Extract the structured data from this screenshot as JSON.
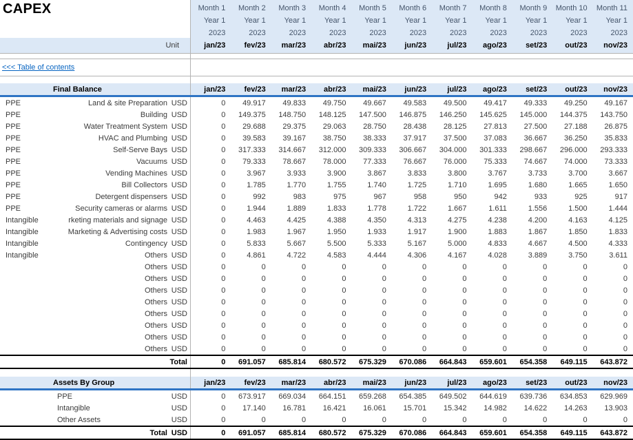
{
  "title": "CAPEX",
  "unit_header": "Unit",
  "toc_link": "<<< Table of contents",
  "columns": [
    {
      "month": "Month 1",
      "year": "Year 1",
      "cal": "2023",
      "date": "jan/23"
    },
    {
      "month": "Month 2",
      "year": "Year 1",
      "cal": "2023",
      "date": "fev/23"
    },
    {
      "month": "Month 3",
      "year": "Year 1",
      "cal": "2023",
      "date": "mar/23"
    },
    {
      "month": "Month 4",
      "year": "Year 1",
      "cal": "2023",
      "date": "abr/23"
    },
    {
      "month": "Month 5",
      "year": "Year 1",
      "cal": "2023",
      "date": "mai/23"
    },
    {
      "month": "Month 6",
      "year": "Year 1",
      "cal": "2023",
      "date": "jun/23"
    },
    {
      "month": "Month 7",
      "year": "Year 1",
      "cal": "2023",
      "date": "jul/23"
    },
    {
      "month": "Month 8",
      "year": "Year 1",
      "cal": "2023",
      "date": "ago/23"
    },
    {
      "month": "Month 9",
      "year": "Year 1",
      "cal": "2023",
      "date": "set/23"
    },
    {
      "month": "Month 10",
      "year": "Year 1",
      "cal": "2023",
      "date": "out/23"
    },
    {
      "month": "Month 11",
      "year": "Year 1",
      "cal": "2023",
      "date": "nov/23"
    }
  ],
  "final_balance": {
    "header": "Final Balance",
    "rows": [
      {
        "category": "PPE",
        "label": "Land & site Preparation",
        "unit": "USD",
        "values": [
          "0",
          "49.917",
          "49.833",
          "49.750",
          "49.667",
          "49.583",
          "49.500",
          "49.417",
          "49.333",
          "49.250",
          "49.167"
        ]
      },
      {
        "category": "PPE",
        "label": "Building",
        "unit": "USD",
        "values": [
          "0",
          "149.375",
          "148.750",
          "148.125",
          "147.500",
          "146.875",
          "146.250",
          "145.625",
          "145.000",
          "144.375",
          "143.750"
        ]
      },
      {
        "category": "PPE",
        "label": "Water Treatment System",
        "unit": "USD",
        "values": [
          "0",
          "29.688",
          "29.375",
          "29.063",
          "28.750",
          "28.438",
          "28.125",
          "27.813",
          "27.500",
          "27.188",
          "26.875"
        ]
      },
      {
        "category": "PPE",
        "label": "HVAC and Plumbing",
        "unit": "USD",
        "values": [
          "0",
          "39.583",
          "39.167",
          "38.750",
          "38.333",
          "37.917",
          "37.500",
          "37.083",
          "36.667",
          "36.250",
          "35.833"
        ]
      },
      {
        "category": "PPE",
        "label": "Self-Serve Bays",
        "unit": "USD",
        "values": [
          "0",
          "317.333",
          "314.667",
          "312.000",
          "309.333",
          "306.667",
          "304.000",
          "301.333",
          "298.667",
          "296.000",
          "293.333"
        ]
      },
      {
        "category": "PPE",
        "label": "Vacuums",
        "unit": "USD",
        "values": [
          "0",
          "79.333",
          "78.667",
          "78.000",
          "77.333",
          "76.667",
          "76.000",
          "75.333",
          "74.667",
          "74.000",
          "73.333"
        ]
      },
      {
        "category": "PPE",
        "label": "Vending Machines",
        "unit": "USD",
        "values": [
          "0",
          "3.967",
          "3.933",
          "3.900",
          "3.867",
          "3.833",
          "3.800",
          "3.767",
          "3.733",
          "3.700",
          "3.667"
        ]
      },
      {
        "category": "PPE",
        "label": "Bill Collectors",
        "unit": "USD",
        "values": [
          "0",
          "1.785",
          "1.770",
          "1.755",
          "1.740",
          "1.725",
          "1.710",
          "1.695",
          "1.680",
          "1.665",
          "1.650"
        ]
      },
      {
        "category": "PPE",
        "label": "Detergent dispensers",
        "unit": "USD",
        "values": [
          "0",
          "992",
          "983",
          "975",
          "967",
          "958",
          "950",
          "942",
          "933",
          "925",
          "917"
        ]
      },
      {
        "category": "PPE",
        "label": "Security cameras or alarms",
        "unit": "USD",
        "values": [
          "0",
          "1.944",
          "1.889",
          "1.833",
          "1.778",
          "1.722",
          "1.667",
          "1.611",
          "1.556",
          "1.500",
          "1.444"
        ]
      },
      {
        "category": "Intangible",
        "label": "rketing materials and signage",
        "unit": "USD",
        "values": [
          "0",
          "4.463",
          "4.425",
          "4.388",
          "4.350",
          "4.313",
          "4.275",
          "4.238",
          "4.200",
          "4.163",
          "4.125"
        ]
      },
      {
        "category": "Intangible",
        "label": "Marketing & Advertising costs",
        "unit": "USD",
        "values": [
          "0",
          "1.983",
          "1.967",
          "1.950",
          "1.933",
          "1.917",
          "1.900",
          "1.883",
          "1.867",
          "1.850",
          "1.833"
        ]
      },
      {
        "category": "Intangible",
        "label": "Contingency",
        "unit": "USD",
        "values": [
          "0",
          "5.833",
          "5.667",
          "5.500",
          "5.333",
          "5.167",
          "5.000",
          "4.833",
          "4.667",
          "4.500",
          "4.333"
        ]
      },
      {
        "category": "Intangible",
        "label": "Others",
        "unit": "USD",
        "values": [
          "0",
          "4.861",
          "4.722",
          "4.583",
          "4.444",
          "4.306",
          "4.167",
          "4.028",
          "3.889",
          "3.750",
          "3.611"
        ]
      },
      {
        "category": "",
        "label": "Others",
        "unit": "USD",
        "values": [
          "0",
          "0",
          "0",
          "0",
          "0",
          "0",
          "0",
          "0",
          "0",
          "0",
          "0"
        ]
      },
      {
        "category": "",
        "label": "Others",
        "unit": "USD",
        "values": [
          "0",
          "0",
          "0",
          "0",
          "0",
          "0",
          "0",
          "0",
          "0",
          "0",
          "0"
        ]
      },
      {
        "category": "",
        "label": "Others",
        "unit": "USD",
        "values": [
          "0",
          "0",
          "0",
          "0",
          "0",
          "0",
          "0",
          "0",
          "0",
          "0",
          "0"
        ]
      },
      {
        "category": "",
        "label": "Others",
        "unit": "USD",
        "values": [
          "0",
          "0",
          "0",
          "0",
          "0",
          "0",
          "0",
          "0",
          "0",
          "0",
          "0"
        ]
      },
      {
        "category": "",
        "label": "Others",
        "unit": "USD",
        "values": [
          "0",
          "0",
          "0",
          "0",
          "0",
          "0",
          "0",
          "0",
          "0",
          "0",
          "0"
        ]
      },
      {
        "category": "",
        "label": "Others",
        "unit": "USD",
        "values": [
          "0",
          "0",
          "0",
          "0",
          "0",
          "0",
          "0",
          "0",
          "0",
          "0",
          "0"
        ]
      },
      {
        "category": "",
        "label": "Others",
        "unit": "USD",
        "values": [
          "0",
          "0",
          "0",
          "0",
          "0",
          "0",
          "0",
          "0",
          "0",
          "0",
          "0"
        ]
      },
      {
        "category": "",
        "label": "Others",
        "unit": "USD",
        "values": [
          "0",
          "0",
          "0",
          "0",
          "0",
          "0",
          "0",
          "0",
          "0",
          "0",
          "0"
        ]
      }
    ],
    "total": {
      "label": "Total",
      "values": [
        "0",
        "691.057",
        "685.814",
        "680.572",
        "675.329",
        "670.086",
        "664.843",
        "659.601",
        "654.358",
        "649.115",
        "643.872"
      ]
    }
  },
  "assets_by_group": {
    "header": "Assets By Group",
    "rows": [
      {
        "label": "PPE",
        "unit": "USD",
        "values": [
          "0",
          "673.917",
          "669.034",
          "664.151",
          "659.268",
          "654.385",
          "649.502",
          "644.619",
          "639.736",
          "634.853",
          "629.969"
        ]
      },
      {
        "label": "Intangible",
        "unit": "USD",
        "values": [
          "0",
          "17.140",
          "16.781",
          "16.421",
          "16.061",
          "15.701",
          "15.342",
          "14.982",
          "14.622",
          "14.263",
          "13.903"
        ]
      },
      {
        "label": "Other Assets",
        "unit": "USD",
        "values": [
          "0",
          "0",
          "0",
          "0",
          "0",
          "0",
          "0",
          "0",
          "0",
          "0",
          "0"
        ]
      }
    ],
    "total": {
      "label": "Total",
      "unit": "USD",
      "values": [
        "0",
        "691.057",
        "685.814",
        "680.572",
        "675.329",
        "670.086",
        "664.843",
        "659.601",
        "654.358",
        "649.115",
        "643.872"
      ]
    }
  },
  "colors": {
    "band": "#dce8f6",
    "accent_border": "#2e74c4",
    "gridline": "#b3b3b3",
    "link": "#0563c1"
  }
}
